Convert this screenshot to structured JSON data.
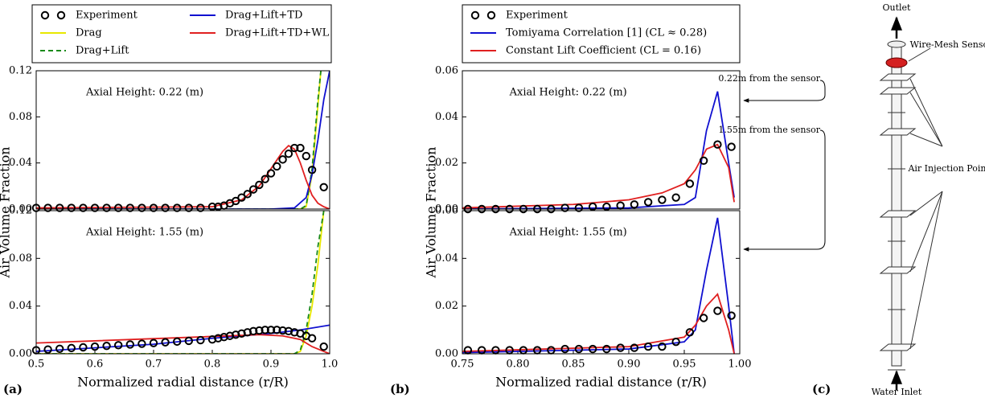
{
  "chart_data": [
    {
      "type": "line",
      "annotation": "Axial Height: 0.22 (m)",
      "ylabel": "Air Volume Fraction",
      "xlim": [
        0.5,
        1.0
      ],
      "ylim": [
        0,
        0.12
      ],
      "yticks": [
        {
          "value": 0,
          "label": "0.00"
        },
        0.04,
        0.08,
        0.12
      ],
      "legend": "above",
      "legend_columns": 2,
      "series": [
        {
          "name": "Experiment",
          "style": "markers",
          "color": "#000000",
          "x": [
            0.5,
            0.52,
            0.54,
            0.56,
            0.58,
            0.6,
            0.62,
            0.64,
            0.66,
            0.68,
            0.7,
            0.72,
            0.74,
            0.76,
            0.78,
            0.8,
            0.81,
            0.82,
            0.83,
            0.84,
            0.85,
            0.86,
            0.87,
            0.88,
            0.89,
            0.9,
            0.91,
            0.92,
            0.93,
            0.94,
            0.95,
            0.96,
            0.97,
            0.99
          ],
          "values": [
            0.001,
            0.001,
            0.001,
            0.001,
            0.001,
            0.001,
            0.001,
            0.001,
            0.001,
            0.001,
            0.001,
            0.001,
            0.001,
            0.001,
            0.001,
            0.002,
            0.002,
            0.003,
            0.005,
            0.007,
            0.01,
            0.013,
            0.017,
            0.021,
            0.026,
            0.031,
            0.037,
            0.043,
            0.048,
            0.053,
            0.053,
            0.046,
            0.034,
            0.019
          ]
        },
        {
          "name": "Drag",
          "style": "solid",
          "color": "#e8e800",
          "x": [
            0.5,
            0.95,
            0.96,
            0.97,
            0.98,
            0.985
          ],
          "values": [
            0,
            0,
            0.002,
            0.03,
            0.09,
            0.12
          ]
        },
        {
          "name": "Drag+Lift",
          "style": "dashed",
          "color": "#1a8a1a",
          "x": [
            0.5,
            0.95,
            0.96,
            0.97,
            0.98,
            0.985
          ],
          "values": [
            0,
            0,
            0.003,
            0.035,
            0.095,
            0.12
          ]
        },
        {
          "name": "Drag+Lift+TD",
          "style": "solid",
          "color": "#1010d0",
          "x": [
            0.5,
            0.9,
            0.94,
            0.96,
            0.97,
            0.98,
            0.99,
            1.0
          ],
          "values": [
            0,
            0,
            0.001,
            0.01,
            0.03,
            0.06,
            0.095,
            0.12
          ]
        },
        {
          "name": "Drag+Lift+TD+WL",
          "style": "solid",
          "color": "#e02020",
          "x": [
            0.5,
            0.8,
            0.85,
            0.88,
            0.9,
            0.92,
            0.93,
            0.94,
            0.95,
            0.96,
            0.97,
            0.98,
            0.99,
            1.0
          ],
          "values": [
            0.001,
            0.002,
            0.008,
            0.02,
            0.035,
            0.05,
            0.055,
            0.052,
            0.04,
            0.025,
            0.012,
            0.005,
            0.002,
            0
          ]
        }
      ]
    },
    {
      "type": "line",
      "annotation": "Axial Height: 1.55 (m)",
      "xlabel": "Normalized radial distance (r/R)",
      "xlim": [
        0.5,
        1.0
      ],
      "ylim": [
        0,
        0.12
      ],
      "xticks": [
        0.5,
        0.6,
        0.7,
        0.8,
        0.9,
        {
          "value": 1,
          "label": "1.0"
        }
      ],
      "yticks": [
        {
          "value": 0,
          "label": "0.00"
        },
        0.04,
        0.08,
        0.12
      ],
      "series": [
        {
          "style": "markers",
          "color": "#000000",
          "x": [
            0.5,
            0.52,
            0.54,
            0.56,
            0.58,
            0.6,
            0.62,
            0.64,
            0.66,
            0.68,
            0.7,
            0.72,
            0.74,
            0.76,
            0.78,
            0.8,
            0.81,
            0.82,
            0.83,
            0.84,
            0.85,
            0.86,
            0.87,
            0.88,
            0.89,
            0.9,
            0.91,
            0.92,
            0.93,
            0.94,
            0.95,
            0.96,
            0.97,
            0.99
          ],
          "values": [
            0.003,
            0.0036,
            0.0042,
            0.0048,
            0.0054,
            0.006,
            0.0066,
            0.0072,
            0.0078,
            0.0084,
            0.009,
            0.0096,
            0.0102,
            0.0108,
            0.0114,
            0.012,
            0.013,
            0.014,
            0.015,
            0.016,
            0.017,
            0.018,
            0.019,
            0.0195,
            0.02,
            0.02,
            0.02,
            0.0195,
            0.019,
            0.018,
            0.017,
            0.015,
            0.013,
            0.006
          ]
        },
        {
          "style": "solid",
          "color": "#e8e800",
          "x": [
            0.5,
            0.94,
            0.95,
            0.96,
            0.97,
            0.98,
            0.99
          ],
          "values": [
            0,
            0,
            0.002,
            0.015,
            0.04,
            0.075,
            0.12
          ]
        },
        {
          "style": "dashed",
          "color": "#1a8a1a",
          "x": [
            0.5,
            0.94,
            0.95,
            0.96,
            0.97,
            0.98,
            0.99
          ],
          "values": [
            0,
            0,
            0.003,
            0.02,
            0.05,
            0.09,
            0.12
          ]
        },
        {
          "style": "solid",
          "color": "#1010d0",
          "x": [
            0.5,
            0.7,
            0.8,
            0.9,
            0.95,
            1.0
          ],
          "values": [
            0.002,
            0.008,
            0.013,
            0.017,
            0.02,
            0.024
          ]
        },
        {
          "style": "solid",
          "color": "#e02020",
          "x": [
            0.5,
            0.88,
            0.92,
            0.95,
            0.97,
            0.99,
            1.0
          ],
          "values": [
            0.009,
            0.016,
            0.015,
            0.012,
            0.006,
            0.002,
            0
          ]
        }
      ]
    },
    {
      "type": "line",
      "annotation": "Axial Height: 0.22 (m)",
      "ylabel": "Air Volume Fraction",
      "xlim": [
        0.75,
        1.0
      ],
      "ylim": [
        0,
        0.06
      ],
      "yticks": [
        {
          "value": 0,
          "label": "0.00"
        },
        0.02,
        0.04,
        0.06
      ],
      "legend": "above",
      "legend_columns": 1,
      "series": [
        {
          "name": "Experiment",
          "style": "markers",
          "color": "#000000",
          "x": [
            0.755,
            0.7675,
            0.78,
            0.7925,
            0.805,
            0.8175,
            0.83,
            0.8425,
            0.855,
            0.8675,
            0.88,
            0.8925,
            0.905,
            0.9175,
            0.93,
            0.9425,
            0.955,
            0.9675,
            0.98,
            0.9925
          ],
          "values": [
            0,
            0,
            0,
            0,
            0,
            0,
            0,
            0.0005,
            0.0005,
            0.001,
            0.001,
            0.0015,
            0.002,
            0.003,
            0.004,
            0.005,
            0.011,
            0.021,
            0.028,
            0.027
          ]
        },
        {
          "name": "Tomiyama Correlation [1]  (CL ≈ 0.28)",
          "style": "solid",
          "color": "#1010d0",
          "x": [
            0.75,
            0.9,
            0.95,
            0.96,
            0.97,
            0.98,
            0.99,
            0.995
          ],
          "values": [
            0,
            0.0005,
            0.002,
            0.005,
            0.034,
            0.051,
            0.02,
            0.005
          ]
        },
        {
          "name": "Constant Lift Coefficient  (CL = 0.16)",
          "style": "solid",
          "color": "#e02020",
          "x": [
            0.75,
            0.85,
            0.9,
            0.93,
            0.95,
            0.96,
            0.97,
            0.98,
            0.99,
            0.995
          ],
          "values": [
            0.0005,
            0.002,
            0.004,
            0.007,
            0.011,
            0.017,
            0.026,
            0.028,
            0.018,
            0.003
          ]
        }
      ]
    },
    {
      "type": "line",
      "annotation": "Axial Height: 1.55 (m)",
      "xlabel": "Normalized radial distance (r/R)",
      "xlim": [
        0.75,
        1.0
      ],
      "ylim": [
        0,
        0.06
      ],
      "xticks": [
        0.75,
        {
          "value": 0.8,
          "label": "0.80"
        },
        0.85,
        {
          "value": 0.9,
          "label": "0.90"
        },
        0.95,
        {
          "value": 1,
          "label": "1.00"
        }
      ],
      "yticks": [
        {
          "value": 0,
          "label": "0.00"
        },
        0.02,
        0.04,
        0.06
      ],
      "series": [
        {
          "style": "markers",
          "color": "#000000",
          "x": [
            0.755,
            0.7675,
            0.78,
            0.7925,
            0.805,
            0.8175,
            0.83,
            0.8425,
            0.855,
            0.8675,
            0.88,
            0.8925,
            0.905,
            0.9175,
            0.93,
            0.9425,
            0.955,
            0.9675,
            0.98,
            0.9925
          ],
          "values": [
            0.0015,
            0.0015,
            0.0015,
            0.0015,
            0.0015,
            0.0015,
            0.0015,
            0.002,
            0.002,
            0.002,
            0.002,
            0.0025,
            0.0025,
            0.003,
            0.003,
            0.005,
            0.009,
            0.015,
            0.018,
            0.016
          ]
        },
        {
          "style": "solid",
          "color": "#1010d0",
          "x": [
            0.75,
            0.9,
            0.95,
            0.96,
            0.97,
            0.98,
            0.99,
            0.995
          ],
          "values": [
            0.0005,
            0.002,
            0.005,
            0.01,
            0.035,
            0.057,
            0.02,
            0
          ]
        },
        {
          "style": "solid",
          "color": "#e02020",
          "x": [
            0.75,
            0.9,
            0.95,
            0.96,
            0.97,
            0.98,
            0.99,
            0.995
          ],
          "values": [
            0.001,
            0.003,
            0.007,
            0.012,
            0.02,
            0.025,
            0.01,
            0
          ]
        }
      ]
    }
  ],
  "panel_labels": [
    "(a)",
    "(b)",
    "(c)"
  ],
  "diagram": {
    "outlet": "Outlet",
    "sensor": "Wire-Mesh Sensor",
    "height_1": "0.22m from the sensor",
    "height_2": "1.55m from the sensor",
    "injection": "Air Injection Points",
    "inlet": "Water Inlet"
  }
}
